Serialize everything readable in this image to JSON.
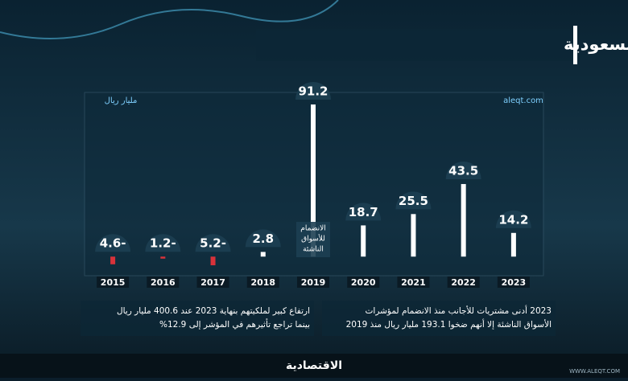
{
  "chart_data": {
    "type": "bar",
    "title": "صافي التدفقات الأجنبية للأسهم السعودية",
    "unit_label": "مليار ريال",
    "source": "aleqt.com",
    "categories": [
      "2015",
      "2016",
      "2017",
      "2018",
      "2019",
      "2020",
      "2021",
      "2022",
      "2023"
    ],
    "values": [
      -4.6,
      -1.2,
      -5.2,
      2.8,
      91.2,
      18.7,
      25.5,
      43.5,
      14.2
    ],
    "value_labels": [
      "4.6-",
      "1.2-",
      "5.2-",
      "2.8",
      "91.2",
      "18.7",
      "25.5",
      "43.5",
      "14.2"
    ],
    "positive_color": "#ffffff",
    "negative_color": "#d8323a",
    "ylim": [
      -10,
      96
    ],
    "annotation": {
      "category": 4,
      "lines": [
        "الانضمام",
        "للأسواق",
        "الناشئة"
      ]
    }
  },
  "notes": [
    [
      "2023 أدنى مشتريات للأجانب منذ الانضمام لمؤشرات",
      "الأسواق الناشئة إلا أنهم ضخوا 193.1 مليار ريال منذ 2019"
    ],
    [
      "ارتفاع كبير لملكيتهم بنهاية 2023 عند 400.6 مليار ريال",
      "بينما تراجع تأثيرهم في المؤشر إلى 12.9%"
    ]
  ],
  "footer": {
    "logo": "الاقتصادية",
    "website": "WWW.ALEQT.COM"
  }
}
